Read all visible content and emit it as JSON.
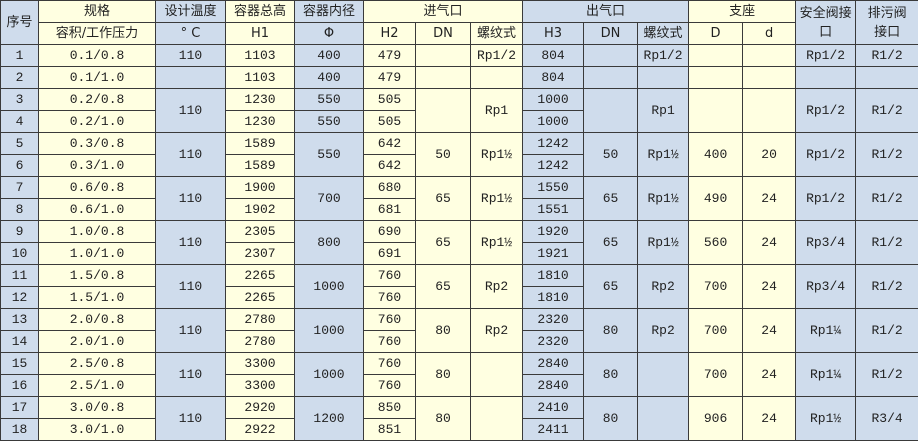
{
  "colors": {
    "yellow": "#FFFFE1",
    "blue": "#CFDCEC"
  },
  "header": {
    "seq": "序号",
    "spec": "规格",
    "spec_sub": "容积/工作压力",
    "temp": "设计温度",
    "temp_sub": "° C",
    "height": "容器总高",
    "height_sub": "H1",
    "diameter": "容器内径",
    "diameter_sub": "Φ",
    "inlet": "进气口",
    "inlet_h": "H2",
    "inlet_dn": "DN",
    "inlet_thread": "螺纹式",
    "outlet": "出气口",
    "outlet_h": "H3",
    "outlet_dn": "DN",
    "outlet_thread": "螺纹式",
    "support": "支座",
    "support_D": "D",
    "support_d": "d",
    "safety_valve": "安全阀接口",
    "drain_valve": "排污阀接口"
  },
  "rows": [
    [
      "1",
      "0.1/0.8",
      "110",
      "1103",
      "400",
      "479",
      "",
      "Rp1/2",
      "804",
      "",
      "Rp1/2",
      "",
      "",
      "Rp1/2",
      "R1/2"
    ],
    [
      "2",
      "0.1/1.0",
      "",
      "1103",
      "400",
      "479",
      "",
      "",
      "804",
      "",
      "",
      "",
      "",
      "",
      ""
    ],
    [
      "3",
      "0.2/0.8",
      "110",
      "1230",
      "550",
      "505",
      "",
      "Rp1",
      "1000",
      "",
      "Rp1",
      "",
      "",
      "Rp1/2",
      "R1/2"
    ],
    [
      "4",
      "0.2/1.0",
      null,
      "1230",
      "550",
      "505",
      null,
      null,
      "1000",
      null,
      null,
      null,
      null,
      null,
      null
    ],
    [
      "5",
      "0.3/0.8",
      "110",
      "1589",
      "550",
      "642",
      "50",
      "Rp1½",
      "1242",
      "50",
      "Rp1½",
      "400",
      "20",
      "Rp1/2",
      "R1/2"
    ],
    [
      "6",
      "0.3/1.0",
      null,
      "1589",
      null,
      "642",
      null,
      null,
      "1242",
      null,
      null,
      null,
      null,
      null,
      null
    ],
    [
      "7",
      "0.6/0.8",
      "110",
      "1900",
      "700",
      "680",
      "65",
      "Rp1½",
      "1550",
      "65",
      "Rp1½",
      "490",
      "24",
      "Rp1/2",
      "R1/2"
    ],
    [
      "8",
      "0.6/1.0",
      null,
      "1902",
      null,
      "681",
      null,
      null,
      "1551",
      null,
      null,
      null,
      null,
      null,
      null
    ],
    [
      "9",
      "1.0/0.8",
      "110",
      "2305",
      "800",
      "690",
      "65",
      "Rp1½",
      "1920",
      "65",
      "Rp1½",
      "560",
      "24",
      "Rp3/4",
      "R1/2"
    ],
    [
      "10",
      "1.0/1.0",
      null,
      "2307",
      null,
      "691",
      null,
      null,
      "1921",
      null,
      null,
      null,
      null,
      null,
      null
    ],
    [
      "11",
      "1.5/0.8",
      "110",
      "2265",
      "1000",
      "760",
      "65",
      "Rp2",
      "1810",
      "65",
      "Rp2",
      "700",
      "24",
      "Rp3/4",
      "R1/2"
    ],
    [
      "12",
      "1.5/1.0",
      null,
      "2265",
      null,
      "760",
      null,
      null,
      "1810",
      null,
      null,
      null,
      null,
      null,
      null
    ],
    [
      "13",
      "2.0/0.8",
      "110",
      "2780",
      "1000",
      "760",
      "80",
      "Rp2",
      "2320",
      "80",
      "Rp2",
      "700",
      "24",
      "Rp1¼",
      "R1/2"
    ],
    [
      "14",
      "2.0/1.0",
      null,
      "2780",
      null,
      "760",
      null,
      null,
      "2320",
      null,
      null,
      null,
      null,
      null,
      null
    ],
    [
      "15",
      "2.5/0.8",
      "110",
      "3300",
      "1000",
      "760",
      "80",
      "",
      "2840",
      "80",
      "",
      "700",
      "24",
      "Rp1¼",
      "R1/2"
    ],
    [
      "16",
      "2.5/1.0",
      null,
      "3300",
      null,
      "760",
      null,
      null,
      "2840",
      null,
      null,
      null,
      null,
      null,
      null
    ],
    [
      "17",
      "3.0/0.8",
      "110",
      "2920",
      "1200",
      "850",
      "80",
      "",
      "2410",
      "80",
      "",
      "906",
      "24",
      "Rp1½",
      "R3/4"
    ],
    [
      "18",
      "3.0/1.0",
      null,
      "2922",
      null,
      "851",
      null,
      null,
      "2411",
      null,
      null,
      null,
      null,
      null,
      null
    ]
  ]
}
